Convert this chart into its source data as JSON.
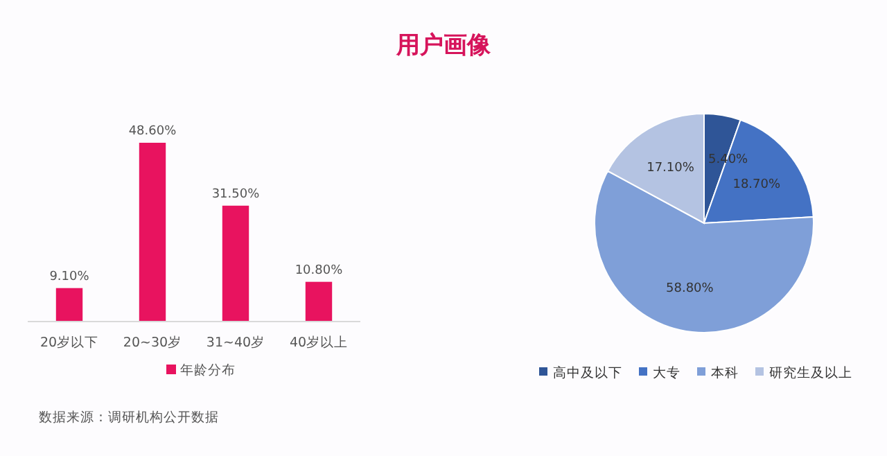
{
  "chart_data": [
    {
      "type": "bar",
      "categories": [
        "20岁以下",
        "20~30岁",
        "31~40岁",
        "40岁以上"
      ],
      "series": [
        {
          "name": "年龄分布",
          "color": "#e8135f",
          "values": [
            9.1,
            48.6,
            31.5,
            10.8
          ],
          "value_labels": [
            "9.10%",
            "48.60%",
            "31.50%",
            "10.80%"
          ]
        }
      ],
      "legend": "bottom",
      "annotations": [
        "数据来源：调研机构公开数据"
      ]
    },
    {
      "type": "pie",
      "title": "用户画像",
      "categories": [
        "高中及以下",
        "大专",
        "本科",
        "研究生及以上"
      ],
      "values": [
        5.4,
        18.7,
        58.8,
        17.1
      ],
      "colors": [
        "#2f5597",
        "#4472c4",
        "#7f9fd8",
        "#b4c3e2"
      ],
      "value_labels": [
        "5.40%",
        "18.70%",
        "58.80%",
        "17.10%"
      ],
      "legend": "bottom"
    }
  ]
}
